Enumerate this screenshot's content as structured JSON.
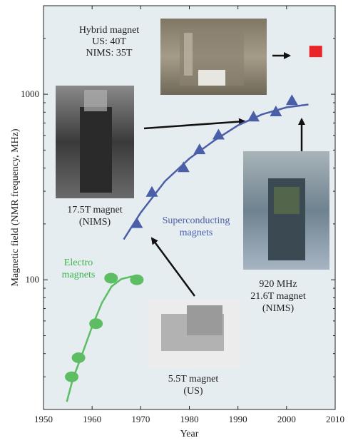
{
  "chart_data": {
    "type": "scatter",
    "xlabel": "Year",
    "ylabel": "Magnetic field (NMR frequency, MHz)",
    "xlim": [
      1950,
      2010
    ],
    "ylim": [
      20,
      3000
    ],
    "yscale": "log",
    "xticks": [
      1950,
      1960,
      1970,
      1980,
      1990,
      2000,
      2010
    ],
    "yticks": [
      100,
      1000
    ],
    "series": [
      {
        "name": "Electro magnets",
        "color": "#5cbd63",
        "marker": "circle",
        "points": [
          [
            1955.8,
            30
          ],
          [
            1957.2,
            38
          ],
          [
            1960.8,
            58
          ],
          [
            1963.9,
            102
          ],
          [
            1969.2,
            100
          ]
        ],
        "curve": [
          [
            1954.8,
            22
          ],
          [
            1956,
            29
          ],
          [
            1958,
            40
          ],
          [
            1960,
            56
          ],
          [
            1962,
            75
          ],
          [
            1964,
            92
          ],
          [
            1966,
            101
          ],
          [
            1968,
            104
          ],
          [
            1969.5,
            105
          ]
        ]
      },
      {
        "name": "Superconducting magnets",
        "color": "#4a5fa8",
        "marker": "triangle",
        "points": [
          [
            1969.2,
            200
          ],
          [
            1972.3,
            295
          ],
          [
            1978.8,
            400
          ],
          [
            1982.1,
            500
          ],
          [
            1986,
            600
          ],
          [
            1993.2,
            750
          ],
          [
            1997.8,
            800
          ],
          [
            2001.1,
            920
          ]
        ],
        "curve": [
          [
            1966.5,
            165
          ],
          [
            1970,
            230
          ],
          [
            1975,
            340
          ],
          [
            1980,
            450
          ],
          [
            1985,
            560
          ],
          [
            1990,
            680
          ],
          [
            1995,
            780
          ],
          [
            2000,
            850
          ],
          [
            2004.5,
            880
          ]
        ]
      },
      {
        "name": "Hybrid magnet",
        "color": "#e8262a",
        "marker": "square",
        "points": [
          [
            2006,
            1700
          ]
        ]
      }
    ],
    "annotations": {
      "hybrid": [
        "Hybrid magnet",
        "US: 40T",
        "NIMS: 35T"
      ],
      "m175": [
        "17.5T magnet",
        "(NIMS)"
      ],
      "superconducting": [
        "Superconducting",
        "magnets"
      ],
      "electro": [
        "Electro",
        "magnets"
      ],
      "m920": [
        "920 MHz",
        "21.6T magnet",
        "(NIMS)"
      ],
      "m55": [
        "5.5T magnet",
        "(US)"
      ]
    },
    "grid": false,
    "legend": "none"
  }
}
